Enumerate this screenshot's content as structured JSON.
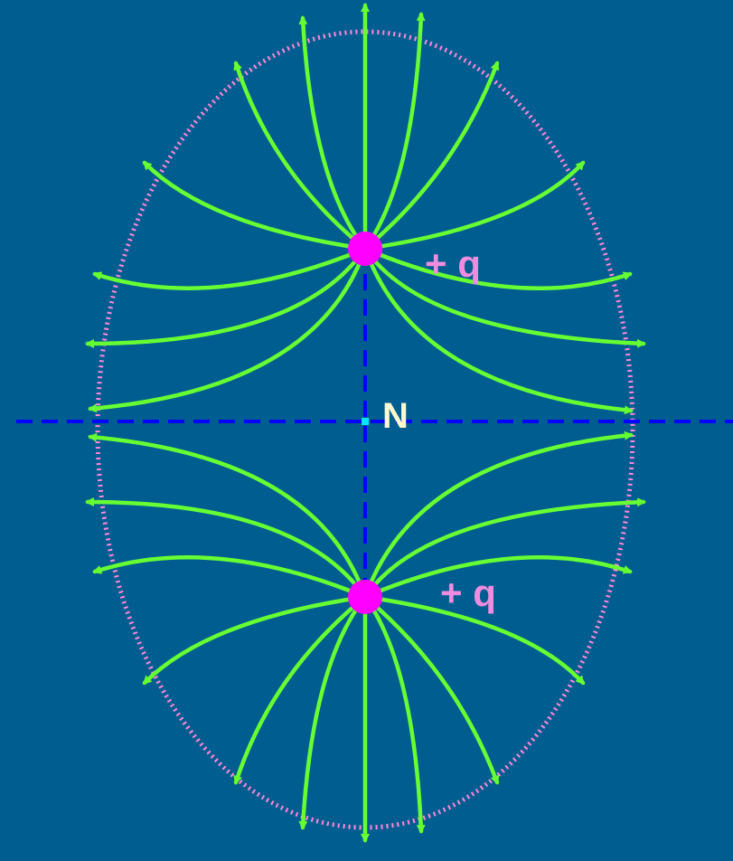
{
  "colors": {
    "background": "#005d8f",
    "field_line": "#66ff33",
    "charge": "#ff00ff",
    "ellipse": "#ff88dd",
    "axis": "#0000ff",
    "point_n": "#00e5ff",
    "charge_label": "#f08ce0",
    "n_label": "#fff8d0"
  },
  "charges": {
    "top": {
      "label": "+ q"
    },
    "bottom": {
      "label": "+ q"
    }
  },
  "point": {
    "label": "N"
  },
  "icons": [
    "arrow-head-icon",
    "charge-dot-icon"
  ]
}
